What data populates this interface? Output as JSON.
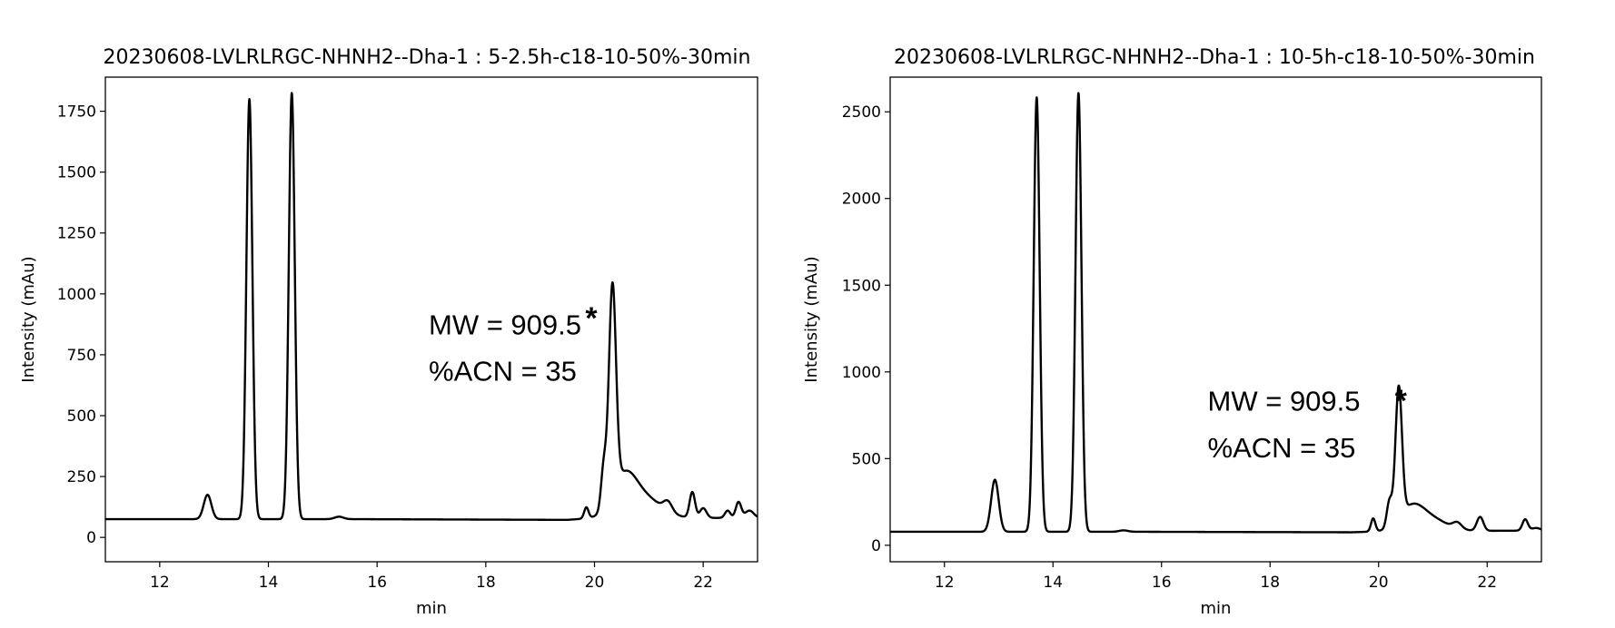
{
  "chart_data": [
    {
      "type": "line",
      "title": "20230608-LVLRLRGC-NHNH2--Dha-1 : 5-2.5h-c18-10-50%-30min",
      "xlabel": "min",
      "ylabel": "Intensity (mAu)",
      "xlim": [
        11,
        23
      ],
      "ylim": [
        -100,
        1890
      ],
      "xticks": [
        12,
        14,
        16,
        18,
        20,
        22
      ],
      "yticks": [
        0,
        250,
        500,
        750,
        1000,
        1250,
        1500,
        1750
      ],
      "grid": false,
      "baseline": [
        [
          11.0,
          75
        ],
        [
          15.5,
          75
        ],
        [
          19.5,
          72
        ],
        [
          20.0,
          80
        ],
        [
          23.0,
          80
        ]
      ],
      "peaks": [
        {
          "x": 12.88,
          "height": 100,
          "width": 0.07
        },
        {
          "x": 13.65,
          "height": 1725,
          "width": 0.055
        },
        {
          "x": 14.43,
          "height": 1750,
          "width": 0.055
        },
        {
          "x": 15.3,
          "height": 10,
          "width": 0.08
        },
        {
          "x": 19.85,
          "height": 45,
          "width": 0.04
        },
        {
          "x": 20.17,
          "height": 170,
          "width": 0.05
        },
        {
          "x": 20.33,
          "height": 860,
          "width": 0.065
        },
        {
          "x": 20.55,
          "height": 160,
          "width": 0.22
        },
        {
          "x": 20.95,
          "height": 75,
          "width": 0.3
        },
        {
          "x": 21.35,
          "height": 40,
          "width": 0.08
        },
        {
          "x": 21.8,
          "height": 105,
          "width": 0.05
        },
        {
          "x": 22.0,
          "height": 40,
          "width": 0.06
        },
        {
          "x": 22.45,
          "height": 30,
          "width": 0.05
        },
        {
          "x": 22.65,
          "height": 65,
          "width": 0.05
        },
        {
          "x": 22.85,
          "height": 30,
          "width": 0.08
        }
      ],
      "annotations": [
        {
          "text": "MW = 909.5",
          "x": 16.95,
          "y": 870
        },
        {
          "text": "%ACN = 35",
          "x": 16.95,
          "y": 680
        },
        {
          "text": "*",
          "x": 19.83,
          "y": 940
        }
      ]
    },
    {
      "type": "line",
      "title": "20230608-LVLRLRGC-NHNH2--Dha-1 : 10-5h-c18-10-50%-30min",
      "xlabel": "min",
      "ylabel": "Intensity (mAu)",
      "xlim": [
        11,
        23
      ],
      "ylim": [
        -95,
        2700
      ],
      "xticks": [
        12,
        14,
        16,
        18,
        20,
        22
      ],
      "yticks": [
        0,
        500,
        1000,
        1500,
        2000,
        2500
      ],
      "grid": false,
      "baseline": [
        [
          11.0,
          78
        ],
        [
          15.5,
          78
        ],
        [
          19.5,
          75
        ],
        [
          20.0,
          80
        ],
        [
          23.0,
          85
        ]
      ],
      "peaks": [
        {
          "x": 12.93,
          "height": 300,
          "width": 0.07
        },
        {
          "x": 13.7,
          "height": 2505,
          "width": 0.055
        },
        {
          "x": 14.47,
          "height": 2530,
          "width": 0.055
        },
        {
          "x": 15.3,
          "height": 8,
          "width": 0.08
        },
        {
          "x": 19.9,
          "height": 75,
          "width": 0.04
        },
        {
          "x": 20.2,
          "height": 150,
          "width": 0.05
        },
        {
          "x": 20.37,
          "height": 760,
          "width": 0.06
        },
        {
          "x": 20.6,
          "height": 120,
          "width": 0.22
        },
        {
          "x": 20.95,
          "height": 70,
          "width": 0.3
        },
        {
          "x": 21.45,
          "height": 35,
          "width": 0.08
        },
        {
          "x": 21.87,
          "height": 80,
          "width": 0.06
        },
        {
          "x": 22.7,
          "height": 65,
          "width": 0.05
        },
        {
          "x": 22.9,
          "height": 15,
          "width": 0.08
        }
      ],
      "annotations": [
        {
          "text": "MW = 909.5",
          "x": 16.85,
          "y": 830
        },
        {
          "text": "%ACN = 35",
          "x": 16.85,
          "y": 560
        },
        {
          "text": "*",
          "x": 20.3,
          "y": 890
        }
      ]
    }
  ]
}
